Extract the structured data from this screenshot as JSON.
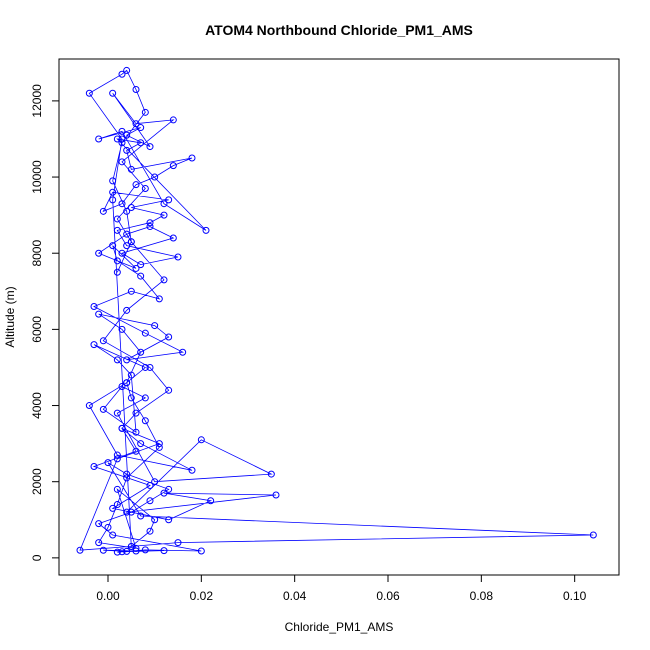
{
  "chart_data": {
    "type": "line",
    "title": "ATOM4 Northbound Chloride_PM1_AMS",
    "xlabel": "Chloride_PM1_AMS",
    "ylabel": "Altitude (m)",
    "xlim": [
      -0.0105,
      0.1095
    ],
    "ylim": [
      -450,
      13100
    ],
    "x_ticks": [
      0.0,
      0.02,
      0.04,
      0.06,
      0.08,
      0.1
    ],
    "x_tick_labels": [
      "0.00",
      "0.02",
      "0.04",
      "0.06",
      "0.08",
      "0.10"
    ],
    "y_ticks": [
      0,
      2000,
      4000,
      6000,
      8000,
      10000,
      12000
    ],
    "y_tick_labels": [
      "0",
      "2000",
      "4000",
      "6000",
      "8000",
      "10000",
      "12000"
    ],
    "grid": false,
    "colors": {
      "series": "#0000ff",
      "axis": "#000000"
    },
    "series": [
      {
        "marker": "open-circle",
        "x": [
          0.002,
          0.004,
          -0.001,
          0.006,
          0.012,
          0.003,
          0.008,
          0.02,
          0.001,
          -0.002,
          0.005,
          0.009,
          0.013,
          0.004,
          0.0,
          0.007,
          0.104,
          0.015,
          0.005,
          -0.006,
          0.002,
          0.011,
          0.003,
          0.006,
          -0.003,
          0.009,
          0.001,
          0.013,
          0.022,
          0.012,
          0.036,
          0.004,
          0.02,
          0.035,
          0.01,
          0.002,
          0.008,
          0.003,
          -0.001,
          0.006,
          0.005,
          0.002,
          -0.003,
          0.008,
          0.004,
          0.007,
          0.003,
          -0.002,
          0.01,
          0.013,
          0.004,
          0.016,
          0.008,
          -0.003,
          0.005,
          0.011,
          0.007,
          0.002,
          0.001,
          0.006,
          -0.002,
          0.004,
          0.009,
          0.014,
          0.003,
          0.007,
          0.015,
          0.004,
          0.002,
          0.009,
          0.012,
          0.005,
          0.013,
          0.001,
          -0.001,
          0.003,
          0.006,
          0.01,
          0.014,
          0.018,
          0.005,
          0.004,
          0.007,
          0.002,
          0.021,
          0.012,
          0.003,
          -0.002,
          0.007,
          0.004,
          0.009,
          0.001,
          0.006,
          0.014,
          0.003,
          0.008,
          0.002,
          0.005,
          0.012,
          0.004,
          -0.001,
          0.009,
          0.013,
          0.006,
          0.003,
          0.007,
          0.018,
          0.002,
          -0.004,
          0.004,
          0.005,
          0.008,
          0.011,
          0.004,
          0.002,
          0.0,
          -0.002,
          0.006,
          0.002,
          0.01,
          0.009,
          0.005,
          0.001,
          0.003,
          -0.004,
          0.003,
          0.004,
          0.006,
          0.008,
          0.003,
          0.001,
          0.004,
          0.005,
          0.002
        ],
        "y": [
          150,
          170,
          200,
          180,
          190,
          160,
          210,
          180,
          600,
          900,
          1200,
          1500,
          1800,
          2200,
          2500,
          1100,
          600,
          400,
          300,
          200,
          2600,
          3000,
          3400,
          2800,
          2400,
          1900,
          1300,
          1000,
          1500,
          1700,
          1650,
          1200,
          3100,
          2200,
          2000,
          3800,
          4200,
          4500,
          3900,
          3300,
          4800,
          5200,
          5600,
          5000,
          4600,
          5400,
          6000,
          6400,
          6100,
          5800,
          5200,
          5400,
          5900,
          6600,
          7000,
          6800,
          7400,
          7800,
          8200,
          7600,
          8000,
          8500,
          8700,
          8400,
          8000,
          7700,
          7900,
          8200,
          8600,
          8800,
          9000,
          9200,
          9400,
          9600,
          9100,
          9300,
          9800,
          10000,
          10300,
          10500,
          10200,
          10700,
          10900,
          11000,
          8600,
          9300,
          11200,
          11000,
          11300,
          11100,
          10800,
          12200,
          11400,
          11500,
          10400,
          9700,
          8900,
          8300,
          7300,
          6500,
          5700,
          5000,
          4400,
          3800,
          3400,
          3000,
          2300,
          2700,
          4000,
          4600,
          4200,
          3600,
          2900,
          2100,
          1400,
          800,
          400,
          250,
          1800,
          1000,
          700,
          300,
          9400,
          11000,
          12200,
          12700,
          12800,
          12300,
          11700,
          10900,
          9900,
          9100,
          8300,
          7500
        ]
      }
    ]
  }
}
